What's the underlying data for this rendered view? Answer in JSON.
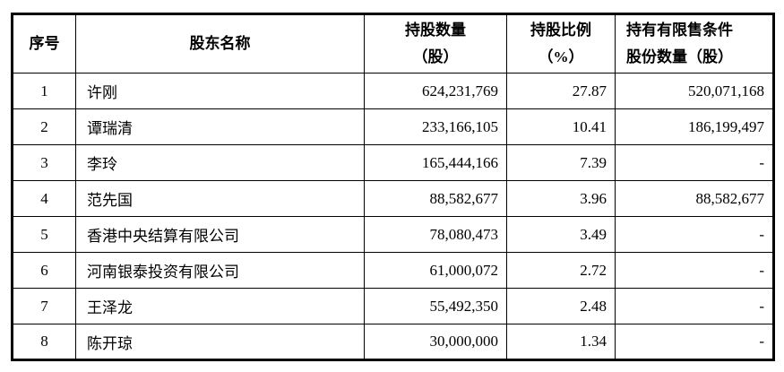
{
  "table": {
    "columns": [
      {
        "key": "index",
        "label_lines": [
          "序号"
        ],
        "header_align": "center",
        "data_align": "center"
      },
      {
        "key": "name",
        "label_lines": [
          "股东名称"
        ],
        "header_align": "center",
        "data_align": "left"
      },
      {
        "key": "shares",
        "label_lines": [
          "持股数量",
          "（股）"
        ],
        "header_align": "center",
        "data_align": "right"
      },
      {
        "key": "ratio",
        "label_lines": [
          "持股比例",
          "（%）"
        ],
        "header_align": "center",
        "data_align": "right"
      },
      {
        "key": "restricted",
        "label_lines": [
          "持有有限售条件",
          "股份数量（股）"
        ],
        "header_align": "left",
        "data_align": "right"
      }
    ],
    "rows": [
      {
        "index": "1",
        "name": "许刚",
        "shares": "624,231,769",
        "ratio": "27.87",
        "restricted": "520,071,168"
      },
      {
        "index": "2",
        "name": "谭瑞清",
        "shares": "233,166,105",
        "ratio": "10.41",
        "restricted": "186,199,497"
      },
      {
        "index": "3",
        "name": "李玲",
        "shares": "165,444,166",
        "ratio": "7.39",
        "restricted": "-"
      },
      {
        "index": "4",
        "name": "范先国",
        "shares": "88,582,677",
        "ratio": "3.96",
        "restricted": "88,582,677"
      },
      {
        "index": "5",
        "name": "香港中央结算有限公司",
        "shares": "78,080,473",
        "ratio": "3.49",
        "restricted": "-"
      },
      {
        "index": "6",
        "name": "河南银泰投资有限公司",
        "shares": "61,000,072",
        "ratio": "2.72",
        "restricted": "-"
      },
      {
        "index": "7",
        "name": "王泽龙",
        "shares": "55,492,350",
        "ratio": "2.48",
        "restricted": "-"
      },
      {
        "index": "8",
        "name": "陈开琼",
        "shares": "30,000,000",
        "ratio": "1.34",
        "restricted": "-"
      }
    ],
    "colors": {
      "border": "#000000",
      "text": "#000000",
      "background": "#ffffff"
    }
  }
}
